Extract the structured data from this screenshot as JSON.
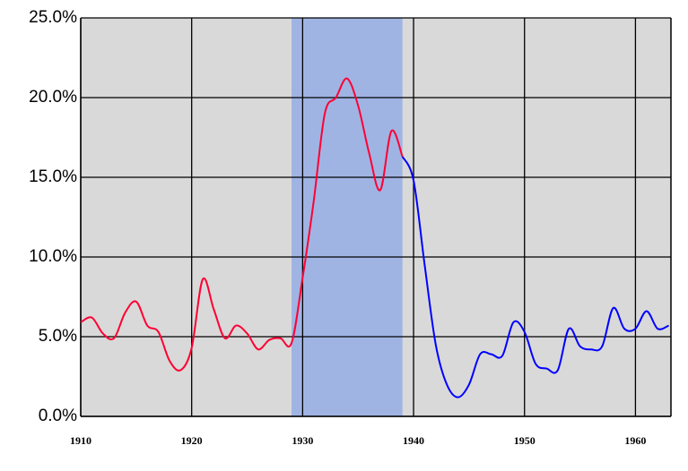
{
  "chart_data": {
    "type": "line",
    "x": [
      1910,
      1911,
      1912,
      1913,
      1914,
      1915,
      1916,
      1917,
      1918,
      1919,
      1920,
      1921,
      1922,
      1923,
      1924,
      1925,
      1926,
      1927,
      1928,
      1929,
      1930,
      1931,
      1932,
      1933,
      1934,
      1935,
      1936,
      1937,
      1938,
      1939,
      1940,
      1941,
      1942,
      1943,
      1944,
      1945,
      1946,
      1947,
      1948,
      1949,
      1950,
      1951,
      1952,
      1953,
      1954,
      1955,
      1956,
      1957,
      1958,
      1959,
      1960,
      1961,
      1962,
      1963
    ],
    "series": [
      {
        "color": "#ff0033",
        "values": [
          5.9,
          6.2,
          5.2,
          4.9,
          6.5,
          7.2,
          5.7,
          5.3,
          3.5,
          2.9,
          4.3,
          8.6,
          6.7,
          4.9,
          5.7,
          5.2,
          4.2,
          4.8,
          4.9,
          4.6,
          8.7,
          13.5,
          19.0,
          20.0,
          21.2,
          19.5,
          16.5,
          14.2,
          17.9,
          16.3,
          null,
          null,
          null,
          null,
          null,
          null,
          null,
          null,
          null,
          null,
          null,
          null,
          null,
          null,
          null,
          null,
          null,
          null,
          null,
          null,
          null,
          null,
          null,
          null
        ]
      },
      {
        "color": "#0000ff",
        "values": [
          null,
          null,
          null,
          null,
          null,
          null,
          null,
          null,
          null,
          null,
          null,
          null,
          null,
          null,
          null,
          null,
          null,
          null,
          null,
          null,
          null,
          null,
          null,
          null,
          null,
          null,
          null,
          null,
          null,
          16.3,
          14.8,
          9.5,
          4.5,
          2.0,
          1.2,
          2.0,
          3.9,
          3.9,
          3.8,
          5.9,
          5.3,
          3.3,
          3.0,
          2.9,
          5.5,
          4.4,
          4.2,
          4.4,
          6.8,
          5.5,
          5.5,
          6.6,
          5.5,
          5.7
        ]
      }
    ],
    "shaded": {
      "range": [
        1929,
        1939
      ],
      "color": "#a0b4e4"
    },
    "xlim": [
      1910,
      1963.2
    ],
    "xticks": [
      1910,
      1920,
      1930,
      1940,
      1950,
      1960
    ],
    "ylim": [
      0,
      25
    ],
    "yticks": [
      {
        "value": 0,
        "label": "0.0%"
      },
      {
        "value": 5,
        "label": "5.0%"
      },
      {
        "value": 10,
        "label": "10.0%"
      },
      {
        "value": 15,
        "label": "15.0%"
      },
      {
        "value": 20,
        "label": "20.0%"
      },
      {
        "value": 25,
        "label": "25.0%"
      }
    ],
    "grid": true,
    "background": "#d9d9d9"
  }
}
